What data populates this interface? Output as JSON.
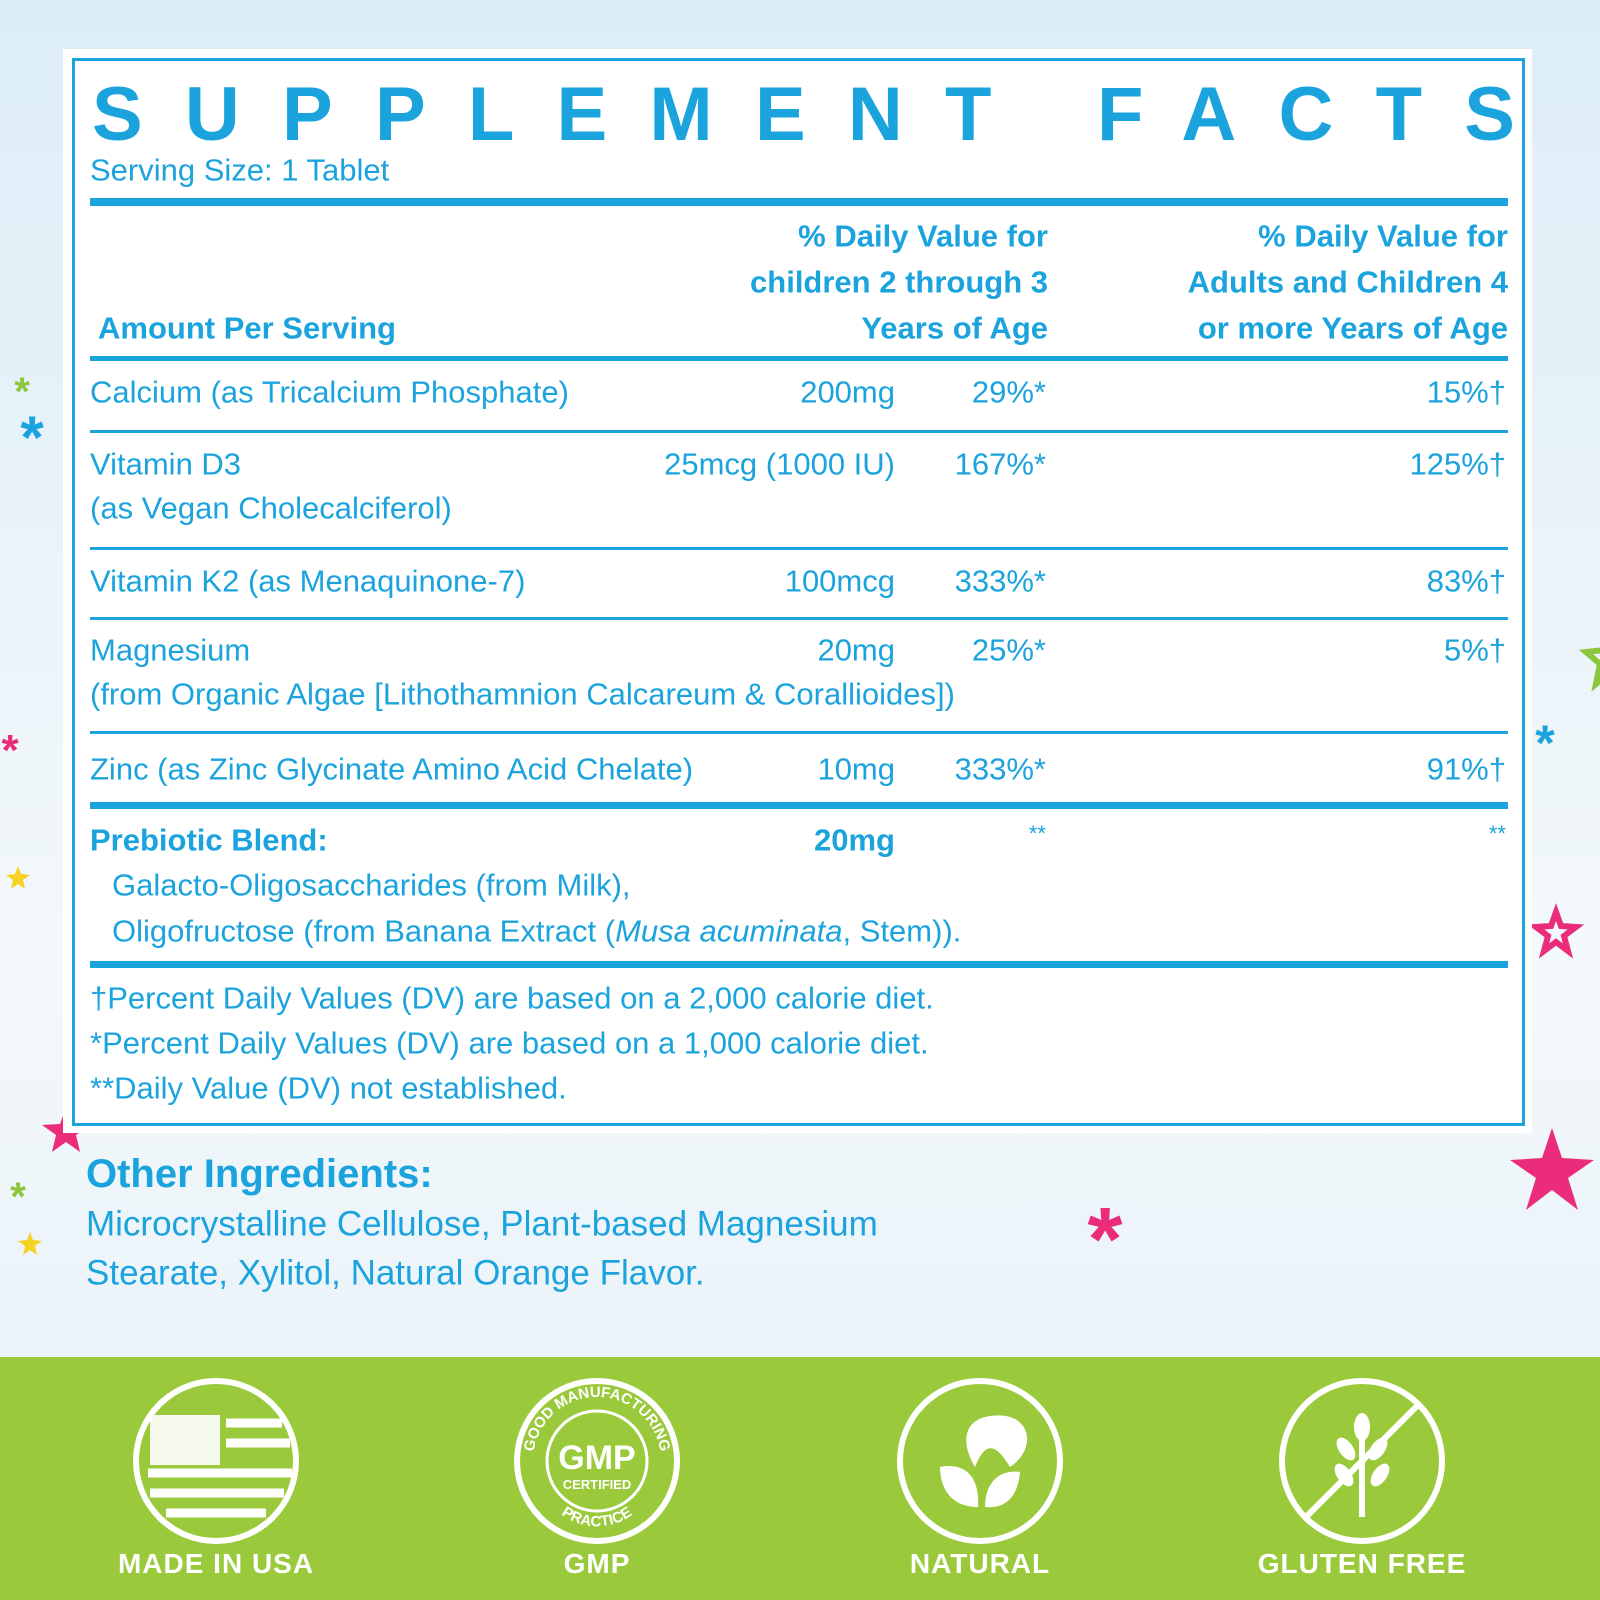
{
  "panel": {
    "title": "SUPPLEMENT FACTS",
    "serving_size": "Serving Size: 1 Tablet"
  },
  "table": {
    "header": {
      "amount": "Amount Per Serving",
      "dv_children": [
        "% Daily Value for",
        "children 2 through 3",
        "Years of Age"
      ],
      "dv_adults": [
        "% Daily Value for",
        "Adults and Children 4",
        "or more Years of Age"
      ]
    },
    "rows": [
      {
        "name": "Calcium (as Tricalcium Phosphate)",
        "amount": "200mg",
        "dv_children": "29%*",
        "dv_adults": "15%†"
      },
      {
        "name": "Vitamin D3",
        "sub": "(as Vegan Cholecalciferol)",
        "amount": "25mcg (1000 IU)",
        "dv_children": "167%*",
        "dv_adults": "125%†"
      },
      {
        "name": "Vitamin K2 (as Menaquinone-7)",
        "amount": "100mcg",
        "dv_children": "333%*",
        "dv_adults": "83%†"
      },
      {
        "name": "Magnesium",
        "sub": "(from Organic Algae [Lithothamnion Calcareum & Corallioides])",
        "amount": "20mg",
        "dv_children": "25%*",
        "dv_adults": "5%†"
      },
      {
        "name": "Zinc (as Zinc Glycinate Amino Acid Chelate)",
        "amount": "10mg",
        "dv_children": "333%*",
        "dv_adults": "91%†"
      }
    ],
    "prebiotic": {
      "name": "Prebiotic Blend:",
      "amount": "20mg",
      "dv_children": "**",
      "dv_adults": "**",
      "description_1": "Galacto-Oligosaccharides (from Milk),",
      "description_2": [
        "Oligofructose (from Banana Extract (",
        "Musa acuminata",
        ", Stem))."
      ]
    },
    "footnotes": [
      "†Percent Daily Values (DV) are based on a 2,000 calorie diet.",
      "*Percent Daily Values (DV) are based on a 1,000 calorie diet.",
      "**Daily Value (DV) not established."
    ]
  },
  "other_ingredients": {
    "title": "Other Ingredients:",
    "lines": [
      "Microcrystalline Cellulose, Plant-based Magnesium",
      "Stearate, Xylitol, Natural Orange Flavor."
    ]
  },
  "badges": [
    "MADE IN USA",
    "GMP",
    "NATURAL",
    "GLUTEN FREE"
  ],
  "gmp_seal": {
    "center": "GMP",
    "sub": "CERTIFIED",
    "ring_top": "GOOD MANUFACTURING",
    "ring_bottom": "PRACTICE"
  }
}
